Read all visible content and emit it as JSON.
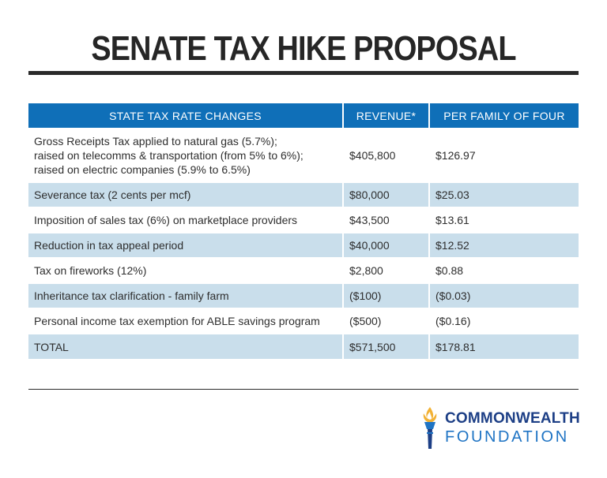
{
  "title": "SENATE TAX HIKE PROPOSAL",
  "colors": {
    "header_blue": "#0f6fb8",
    "row_blue": "#c9deeb",
    "logo_navy": "#1d3f86",
    "logo_blue": "#1f74c4",
    "logo_gold": "#f2b134"
  },
  "table": {
    "headers": [
      "STATE TAX RATE CHANGES",
      "REVENUE*",
      "PER FAMILY OF FOUR"
    ],
    "rows": [
      {
        "change_lines": [
          "Gross Receipts Tax applied to natural gas (5.7%);",
          "raised on telecomms & transportation (from 5% to 6%);",
          "raised on electric companies (5.9% to 6.5%)"
        ],
        "revenue": "$405,800",
        "per_family": "$126.97"
      },
      {
        "change": "Severance tax (2 cents per mcf)",
        "revenue": "$80,000",
        "per_family": "$25.03"
      },
      {
        "change": "Imposition of sales tax (6%) on marketplace providers",
        "revenue": "$43,500",
        "per_family": "$13.61"
      },
      {
        "change": "Reduction in tax appeal period",
        "revenue": "$40,000",
        "per_family": "$12.52"
      },
      {
        "change": "Tax on fireworks (12%)",
        "revenue": "$2,800",
        "per_family": "$0.88"
      },
      {
        "change": "Inheritance tax clarification - family farm",
        "revenue": "($100)",
        "per_family": "($0.03)"
      },
      {
        "change": "Personal income tax exemption for ABLE savings program",
        "revenue": "($500)",
        "per_family": "($0.16)"
      },
      {
        "change": "TOTAL",
        "revenue": "$571,500",
        "per_family": "$178.81"
      }
    ]
  },
  "logo": {
    "line1": "COMMONWEALTH",
    "line2": "FOUNDATION",
    "icon": "torch-icon"
  }
}
